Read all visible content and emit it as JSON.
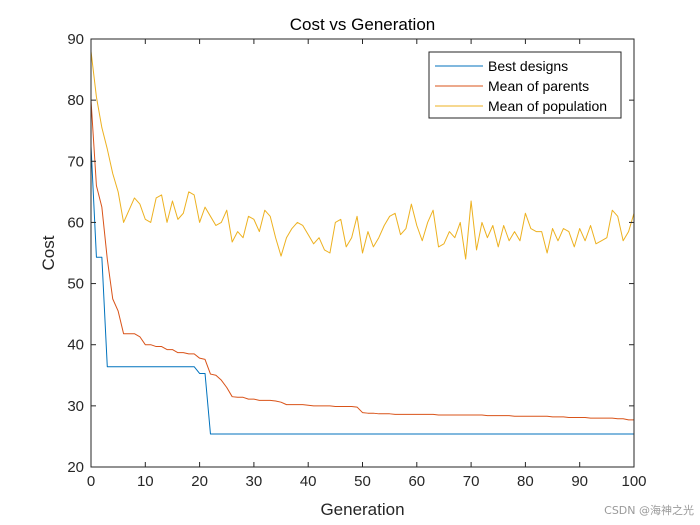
{
  "chart_data": {
    "type": "line",
    "title": "Cost vs Generation",
    "xlabel": "Generation",
    "ylabel": "Cost",
    "xlim": [
      0,
      100
    ],
    "ylim": [
      20,
      90
    ],
    "xticks": [
      0,
      10,
      20,
      30,
      40,
      50,
      60,
      70,
      80,
      90,
      100
    ],
    "yticks": [
      20,
      30,
      40,
      50,
      60,
      70,
      80,
      90
    ],
    "grid": false,
    "legend_position": "top-right",
    "x": [
      0,
      1,
      2,
      3,
      4,
      5,
      6,
      7,
      8,
      9,
      10,
      11,
      12,
      13,
      14,
      15,
      16,
      17,
      18,
      19,
      20,
      21,
      22,
      23,
      24,
      25,
      26,
      27,
      28,
      29,
      30,
      31,
      32,
      33,
      34,
      35,
      36,
      37,
      38,
      39,
      40,
      41,
      42,
      43,
      44,
      45,
      46,
      47,
      48,
      49,
      50,
      51,
      52,
      53,
      54,
      55,
      56,
      57,
      58,
      59,
      60,
      61,
      62,
      63,
      64,
      65,
      66,
      67,
      68,
      69,
      70,
      71,
      72,
      73,
      74,
      75,
      76,
      77,
      78,
      79,
      80,
      81,
      82,
      83,
      84,
      85,
      86,
      87,
      88,
      89,
      90,
      91,
      92,
      93,
      94,
      95,
      96,
      97,
      98,
      99,
      100
    ],
    "series": [
      {
        "name": "Best designs",
        "color": "#0072BD",
        "values": [
          72.5,
          54.3,
          54.3,
          36.4,
          36.4,
          36.4,
          36.4,
          36.4,
          36.4,
          36.4,
          36.4,
          36.4,
          36.4,
          36.4,
          36.4,
          36.4,
          36.4,
          36.4,
          36.4,
          36.4,
          35.3,
          35.3,
          25.4,
          25.4,
          25.4,
          25.4,
          25.4,
          25.4,
          25.4,
          25.4,
          25.4,
          25.4,
          25.4,
          25.4,
          25.4,
          25.4,
          25.4,
          25.4,
          25.4,
          25.4,
          25.4,
          25.4,
          25.4,
          25.4,
          25.4,
          25.4,
          25.4,
          25.4,
          25.4,
          25.4,
          25.4,
          25.4,
          25.4,
          25.4,
          25.4,
          25.4,
          25.4,
          25.4,
          25.4,
          25.4,
          25.4,
          25.4,
          25.4,
          25.4,
          25.4,
          25.4,
          25.4,
          25.4,
          25.4,
          25.4,
          25.4,
          25.4,
          25.4,
          25.4,
          25.4,
          25.4,
          25.4,
          25.4,
          25.4,
          25.4,
          25.4,
          25.4,
          25.4,
          25.4,
          25.4,
          25.4,
          25.4,
          25.4,
          25.4,
          25.4,
          25.4,
          25.4,
          25.4,
          25.4,
          25.4,
          25.4,
          25.4,
          25.4,
          25.4,
          25.4,
          25.4
        ]
      },
      {
        "name": "Mean of parents",
        "color": "#D95319",
        "values": [
          80.0,
          66.0,
          62.5,
          54.0,
          47.5,
          45.5,
          41.8,
          41.8,
          41.8,
          41.3,
          40.0,
          40.0,
          39.7,
          39.7,
          39.2,
          39.2,
          38.7,
          38.7,
          38.5,
          38.5,
          37.8,
          37.6,
          35.2,
          35.0,
          34.2,
          33.0,
          31.5,
          31.4,
          31.4,
          31.1,
          31.1,
          30.9,
          30.9,
          30.9,
          30.8,
          30.6,
          30.2,
          30.2,
          30.2,
          30.2,
          30.1,
          30.0,
          30.0,
          30.0,
          30.0,
          29.9,
          29.9,
          29.9,
          29.9,
          29.8,
          28.9,
          28.8,
          28.8,
          28.7,
          28.7,
          28.7,
          28.6,
          28.6,
          28.6,
          28.6,
          28.6,
          28.6,
          28.6,
          28.6,
          28.5,
          28.5,
          28.5,
          28.5,
          28.5,
          28.5,
          28.5,
          28.5,
          28.5,
          28.4,
          28.4,
          28.4,
          28.4,
          28.4,
          28.3,
          28.3,
          28.3,
          28.3,
          28.3,
          28.3,
          28.3,
          28.2,
          28.2,
          28.2,
          28.1,
          28.1,
          28.1,
          28.1,
          28.0,
          28.0,
          28.0,
          28.0,
          28.0,
          27.9,
          27.9,
          27.7,
          27.7
        ]
      },
      {
        "name": "Mean of population",
        "color": "#EDB120",
        "values": [
          88.0,
          80.5,
          75.5,
          72.0,
          68.0,
          65.0,
          60.0,
          62.0,
          64.0,
          63.0,
          60.5,
          60.0,
          64.0,
          64.5,
          60.0,
          63.5,
          60.5,
          61.5,
          65.0,
          64.5,
          60.0,
          62.5,
          61.0,
          59.5,
          60.0,
          62.0,
          56.8,
          58.5,
          57.5,
          61.0,
          60.5,
          58.5,
          62.0,
          61.0,
          57.5,
          54.5,
          57.5,
          59.0,
          60.0,
          59.5,
          58.0,
          56.5,
          57.5,
          55.5,
          55.0,
          60.0,
          60.5,
          56.0,
          57.5,
          61.0,
          55.0,
          58.5,
          56.0,
          57.5,
          59.5,
          61.0,
          61.5,
          58.0,
          59.0,
          63.0,
          59.5,
          57.0,
          60.0,
          62.0,
          56.0,
          56.5,
          58.5,
          57.5,
          60.0,
          54.0,
          63.5,
          55.5,
          60.0,
          57.5,
          59.5,
          56.0,
          59.5,
          57.0,
          58.5,
          57.0,
          61.5,
          59.0,
          58.5,
          58.5,
          55.0,
          59.0,
          57.0,
          59.0,
          58.5,
          56.0,
          59.0,
          57.0,
          59.5,
          56.5,
          57.0,
          57.5,
          62.0,
          61.0,
          57.0,
          58.5,
          61.5
        ]
      }
    ]
  },
  "watermark": "CSDN @海神之光"
}
